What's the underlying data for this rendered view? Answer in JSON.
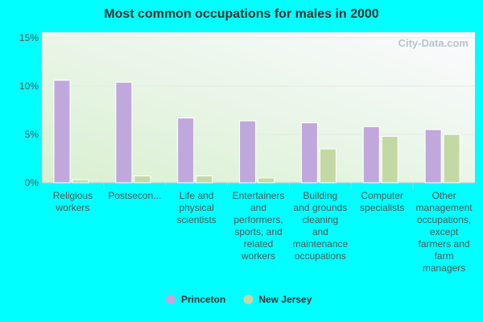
{
  "chart_data": {
    "type": "bar",
    "title": "Most common occupations for males in 2000",
    "watermark": "City-Data.com",
    "categories": [
      "Religious workers",
      "Postsecon...",
      "Life and physical scientists",
      "Entertainers and performers, sports, and related workers",
      "Building and grounds cleaning and maintenance occupations",
      "Computer specialists",
      "Other management occupations, except farmers and farm managers"
    ],
    "series": [
      {
        "name": "Princeton",
        "color": "#c0a8dc",
        "values": [
          10.6,
          10.4,
          6.7,
          6.4,
          6.2,
          5.8,
          5.5
        ]
      },
      {
        "name": "New Jersey",
        "color": "#c4d8a4",
        "values": [
          0.3,
          0.7,
          0.7,
          0.5,
          3.5,
          4.8,
          5.0
        ]
      }
    ],
    "ylim": [
      0,
      15
    ],
    "yticks": [
      {
        "value": 0,
        "label": "0%"
      },
      {
        "value": 5,
        "label": "5%"
      },
      {
        "value": 10,
        "label": "10%"
      },
      {
        "value": 15,
        "label": "15%"
      }
    ],
    "grid": true,
    "legend": "bottom"
  }
}
